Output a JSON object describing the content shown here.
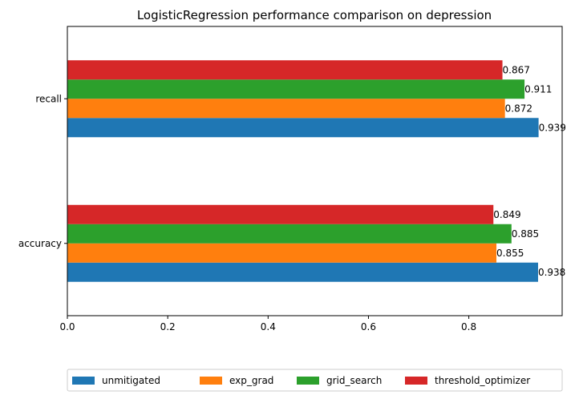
{
  "chart_data": {
    "type": "bar",
    "orientation": "horizontal",
    "title": "LogisticRegression performance comparison on depression",
    "xlabel": "",
    "ylabel": "",
    "categories": [
      "accuracy",
      "recall"
    ],
    "series": [
      {
        "name": "unmitigated",
        "color": "#1f77b4",
        "values": [
          0.938,
          0.939
        ],
        "labels": [
          "0.938",
          "0.939"
        ]
      },
      {
        "name": "exp_grad",
        "color": "#ff7f0e",
        "values": [
          0.855,
          0.872
        ],
        "labels": [
          "0.855",
          "0.872"
        ]
      },
      {
        "name": "grid_search",
        "color": "#2ca02c",
        "values": [
          0.885,
          0.911
        ],
        "labels": [
          "0.885",
          "0.911"
        ]
      },
      {
        "name": "threshold_optimizer",
        "color": "#d62728",
        "values": [
          0.849,
          0.867
        ],
        "labels": [
          "0.849",
          "0.867"
        ]
      }
    ],
    "xlim": [
      0,
      0.986
    ],
    "xticks": [
      0.0,
      0.2,
      0.4,
      0.6,
      0.8
    ],
    "xtick_labels": [
      "0.0",
      "0.2",
      "0.4",
      "0.6",
      "0.8"
    ],
    "grid": false,
    "legend_position": "bottom-center"
  }
}
